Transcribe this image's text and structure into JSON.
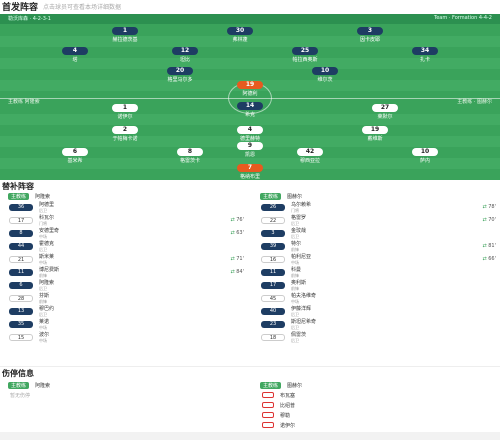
{
  "header": {
    "title": "首发阵容",
    "subtitle": "点击球员可查看本场详细数据"
  },
  "field": {
    "home_team": "勒沃库森 · 4-2-3-1",
    "away_team": "Team · Formation 4-4-2",
    "home_coach": "主教练 阿隆索",
    "away_coach": "主教练 · 图赫尔",
    "home_players": [
      {
        "num": "1",
        "name": "赫拉德茨基"
      },
      {
        "num": "30",
        "name": "弗林蓬"
      },
      {
        "num": "3",
        "name": "因卡皮耶"
      },
      {
        "num": "4",
        "name": "塔"
      },
      {
        "num": "12",
        "name": "坦比"
      },
      {
        "num": "25",
        "name": "帕拉西奥斯"
      },
      {
        "num": "34",
        "name": "扎卡"
      },
      {
        "num": "20",
        "name": "格里马尔多"
      },
      {
        "num": "10",
        "name": "维尔茨"
      },
      {
        "num": "19",
        "name": "阿德利"
      },
      {
        "num": "14",
        "name": "希克"
      }
    ],
    "away_players": [
      {
        "num": "1",
        "name": "诺伊尔"
      },
      {
        "num": "27",
        "name": "莱默尔"
      },
      {
        "num": "2",
        "name": "于帕梅卡诺"
      },
      {
        "num": "4",
        "name": "德里赫特"
      },
      {
        "num": "19",
        "name": "戴维斯"
      },
      {
        "num": "6",
        "name": "基米希"
      },
      {
        "num": "8",
        "name": "格雷茨卡"
      },
      {
        "num": "42",
        "name": "穆西亚拉"
      },
      {
        "num": "10",
        "name": "萨内"
      },
      {
        "num": "7",
        "name": "格纳布里"
      },
      {
        "num": "9",
        "name": "凯恩"
      }
    ]
  },
  "bench": {
    "title": "替补阵容",
    "left_coach_tag": "主教练",
    "left_coach": "阿隆索",
    "right_coach_tag": "主教练",
    "right_coach": "图赫尔",
    "left": [
      {
        "num": "36",
        "name": "阿德里",
        "pos": "后卫"
      },
      {
        "num": "17",
        "name": "科瓦尔",
        "pos": "门将",
        "ev": "76'"
      },
      {
        "num": "8",
        "name": "安德里奇",
        "pos": "中场",
        "ev": "63'"
      },
      {
        "num": "44",
        "name": "霍德克",
        "pos": "后卫"
      },
      {
        "num": "21",
        "name": "斯米莱",
        "pos": "中场",
        "ev": "71'"
      },
      {
        "num": "11",
        "name": "博尼费斯",
        "pos": "前锋",
        "ev": "84'"
      },
      {
        "num": "6",
        "name": "阿隆索",
        "pos": "后卫"
      },
      {
        "num": "28",
        "name": "芬斯",
        "pos": "前锋"
      },
      {
        "num": "13",
        "name": "穆巴约",
        "pos": "后卫"
      },
      {
        "num": "35",
        "name": "莱诺",
        "pos": "中场"
      },
      {
        "num": "15",
        "name": "波尔",
        "pos": "中场"
      }
    ],
    "right": [
      {
        "num": "26",
        "name": "乌尔赖希",
        "pos": "门将",
        "ev": "78'"
      },
      {
        "num": "22",
        "name": "格雷罗",
        "pos": "后卫",
        "ev": "70'"
      },
      {
        "num": "3",
        "name": "金玟哉",
        "pos": "后卫"
      },
      {
        "num": "39",
        "name": "特尔",
        "pos": "前锋",
        "ev": "81'"
      },
      {
        "num": "16",
        "name": "帕利尼亚",
        "pos": "中场",
        "ev": "66'"
      },
      {
        "num": "11",
        "name": "科曼",
        "pos": "前锋"
      },
      {
        "num": "17",
        "name": "奥利斯",
        "pos": "前锋"
      },
      {
        "num": "45",
        "name": "帕夫洛维奇",
        "pos": "中场"
      },
      {
        "num": "40",
        "name": "伊藤洋辉",
        "pos": "后卫"
      },
      {
        "num": "23",
        "name": "斯坦尼希奇",
        "pos": "后卫"
      },
      {
        "num": "18",
        "name": "佩雷茨",
        "pos": "后卫"
      }
    ]
  },
  "injuries": {
    "title": "伤停信息",
    "left_tag": "主教练",
    "left_coach": "阿隆索",
    "left_note": "暂无伤停",
    "right_tag": "主教练",
    "right_coach": "图赫尔",
    "right": [
      {
        "name": "布瓦塞"
      },
      {
        "name": "比绍普"
      },
      {
        "name": "穆勒"
      },
      {
        "name": "诺伊尔"
      }
    ]
  },
  "colors": {
    "pitch": "#3aa35b",
    "home_shirt": "#1e3d63",
    "gk_shirt": "#e85a1f",
    "accent": "#41a760"
  }
}
